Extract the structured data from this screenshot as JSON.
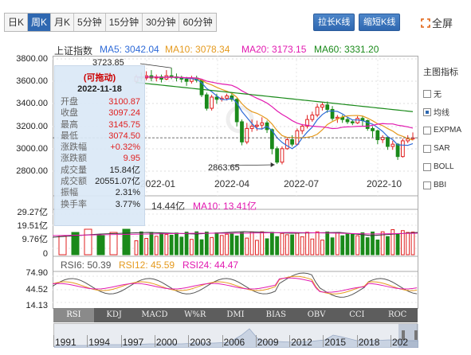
{
  "tabs": [
    {
      "label": "日K",
      "active": false
    },
    {
      "label": "周K",
      "active": true
    },
    {
      "label": "月K",
      "active": false
    },
    {
      "label": "5分钟",
      "active": false
    },
    {
      "label": "15分钟",
      "active": false
    },
    {
      "label": "30分钟",
      "active": false
    },
    {
      "label": "60分钟",
      "active": false
    }
  ],
  "toolbar": {
    "stretch_label": "拉长K线",
    "shrink_label": "缩短K线",
    "fullscreen_label": "全屏"
  },
  "ma": {
    "index_name": "上证指数",
    "items": [
      {
        "label": "MA5: 3042.04",
        "color": "#2f6bd8"
      },
      {
        "label": "MA10: 3078.34",
        "color": "#e59a1e"
      },
      {
        "label": "MA20: 3173.15",
        "color": "#e21ab0"
      },
      {
        "label": "MA60: 3331.20",
        "color": "#1a8a1a"
      }
    ]
  },
  "price_axis": [
    "3800.00",
    "3600.00",
    "3400.00",
    "3200.00",
    "3000.00",
    "2800.00"
  ],
  "x_axis": [
    "2022-01",
    "2022-04",
    "2022-07",
    "2022-10"
  ],
  "annotations": {
    "high_label": "3723.85",
    "low_label": "2863.65"
  },
  "info": {
    "header": "(可拖动)",
    "date": "2022-11-18",
    "rows": [
      {
        "k": "开盘",
        "v": "3100.87",
        "c": "red"
      },
      {
        "k": "收盘",
        "v": "3097.24",
        "c": "red"
      },
      {
        "k": "最高",
        "v": "3145.75",
        "c": "red"
      },
      {
        "k": "最低",
        "v": "3074.50",
        "c": "red"
      },
      {
        "k": "涨跌幅",
        "v": "+0.32%",
        "c": "red"
      },
      {
        "k": "涨跌额",
        "v": "9.95",
        "c": "red"
      },
      {
        "k": "成交量",
        "v": "15.84亿",
        "c": "blk"
      },
      {
        "k": "成交额",
        "v": "20551.07亿",
        "c": "blk"
      },
      {
        "k": "振幅",
        "v": "2.31%",
        "c": "blk"
      },
      {
        "k": "换手率",
        "v": "3.77%",
        "c": "blk"
      }
    ]
  },
  "volume": {
    "axis": [
      "29.27亿",
      "19.51亿",
      "9.76亿",
      "0"
    ],
    "ma5": "14.44亿",
    "ma10_label": "MA10: 13.41亿",
    "ma10_color": "#e21ab0"
  },
  "rsi": {
    "axis": [
      "74.90",
      "44.52",
      "14.13"
    ],
    "items": [
      {
        "label": "RSI6: 50.39",
        "color": "#555555"
      },
      {
        "label": "RSI12: 45.59",
        "color": "#e59a1e"
      },
      {
        "label": "RSI24: 44.47",
        "color": "#e21ab0"
      }
    ]
  },
  "indicator_tabs": [
    "RSI",
    "KDJ",
    "MACD",
    "W%R",
    "DMI",
    "BIAS",
    "OBV",
    "CCI",
    "ROC"
  ],
  "active_indicator": "RSI",
  "side": {
    "title": "主图指标",
    "options": [
      {
        "label": "无",
        "checked": false
      },
      {
        "label": "均线",
        "checked": true
      },
      {
        "label": "EXPMA",
        "checked": false
      },
      {
        "label": "SAR",
        "checked": false
      },
      {
        "label": "BOLL",
        "checked": false
      },
      {
        "label": "BBI",
        "checked": false
      }
    ]
  },
  "timeline_years": [
    "1991",
    "1994",
    "1997",
    "2000",
    "2003",
    "2006",
    "2009",
    "2012",
    "2015",
    "2018",
    "202"
  ],
  "colors": {
    "up": "#e02020",
    "down": "#1a8a1a",
    "accent": "#2f68b1"
  }
}
